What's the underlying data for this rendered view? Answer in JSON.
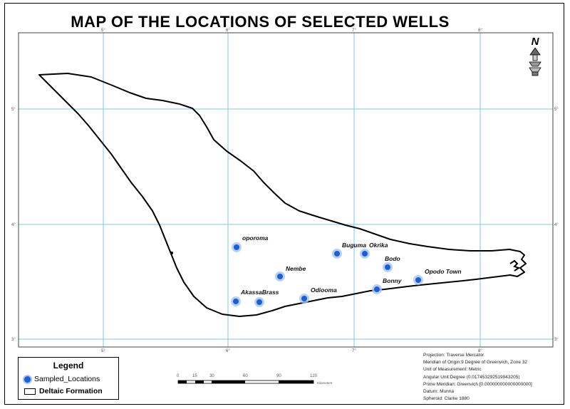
{
  "title": "MAP OF THE LOCATIONS OF SELECTED WELLS",
  "north": {
    "letter": "N",
    "icon": "north-arrow-icon"
  },
  "wells": [
    {
      "name": "oporoma"
    },
    {
      "name": "Nembe"
    },
    {
      "name": "AkassaBrass"
    },
    {
      "name": "Odiooma"
    },
    {
      "name": "Buguma"
    },
    {
      "name": "Okrika"
    },
    {
      "name": "Bodo"
    },
    {
      "name": "Bonny"
    },
    {
      "name": "Opodo Town"
    }
  ],
  "legend": {
    "title": "Legend",
    "items": [
      {
        "label": "Sampled_Locations",
        "symbol": "blue-dot",
        "color": "#1a5fd6"
      },
      {
        "label": "Deltaic Formation",
        "symbol": "outline-box",
        "color": "#000000"
      }
    ]
  },
  "scalebar": {
    "ticks": [
      "0",
      "15",
      "30",
      "60",
      "90",
      "120"
    ],
    "unit": "Kilometers"
  },
  "projection": [
    "Projection: Traverse Mercator.",
    "Meridian of Origin:9 Degree of Greenvich, Zone 32",
    "Unit of Measurement: Metric",
    "Angular Unit:Degree (0.017453292519943205)",
    "Prime Meridian: Greenvich [0.000000000000000000]",
    "Daturn: Munna",
    "Spheroid: Clarke 1880"
  ],
  "grid": {
    "ticks_top": [
      "5°",
      "6°",
      "7°",
      "8°"
    ],
    "ticks_bottom": [
      "5°",
      "6°",
      "7°",
      "8°"
    ],
    "ticks_left": [
      "5°",
      "4°",
      "3°"
    ],
    "ticks_right": [
      "5°",
      "4°",
      "3°"
    ],
    "line_color": "#7ecae8"
  },
  "colors": {
    "well_dot": "#1a5fd6",
    "well_halo": "#a8c4f0",
    "outline": "#000000"
  }
}
